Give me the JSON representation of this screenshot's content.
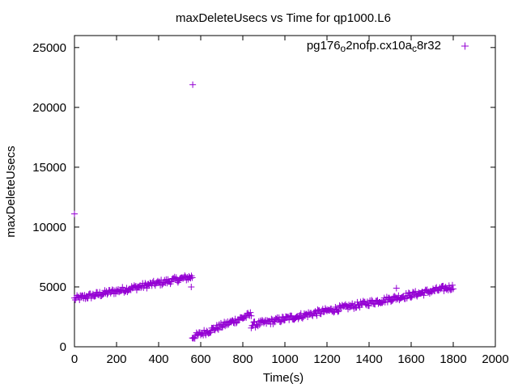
{
  "chart_data": {
    "type": "scatter",
    "title": "maxDeleteUsecs vs Time for qp1000.L6",
    "xlabel": "Time(s)",
    "ylabel": "maxDeleteUsecs",
    "xlim": [
      0,
      2000
    ],
    "ylim": [
      0,
      26000
    ],
    "xticks": [
      0,
      200,
      400,
      600,
      800,
      1000,
      1200,
      1400,
      1600,
      1800,
      2000
    ],
    "yticks": [
      0,
      5000,
      10000,
      15000,
      20000,
      25000
    ],
    "legend": {
      "position": "top-right",
      "marker": "+"
    },
    "series": [
      {
        "name_parts": [
          "pg176",
          "o",
          "2nofp.cx10a",
          "c",
          "8r32"
        ],
        "color": "#9400d3",
        "marker": "plus",
        "segments": [
          {
            "x_start": 0,
            "x_end": 560,
            "y_start": 4000,
            "y_end": 5850,
            "step": 4
          },
          {
            "x_start": 560,
            "x_end": 840,
            "y_start": 800,
            "y_end": 2700,
            "step": 4
          },
          {
            "x_start": 840,
            "x_end": 1800,
            "y_start": 1800,
            "y_end": 5000,
            "step": 4
          }
        ],
        "outliers": [
          {
            "x": 0,
            "y": 11100
          },
          {
            "x": 562,
            "y": 21900
          },
          {
            "x": 555,
            "y": 5000
          },
          {
            "x": 1530,
            "y": 4900
          }
        ]
      }
    ]
  }
}
